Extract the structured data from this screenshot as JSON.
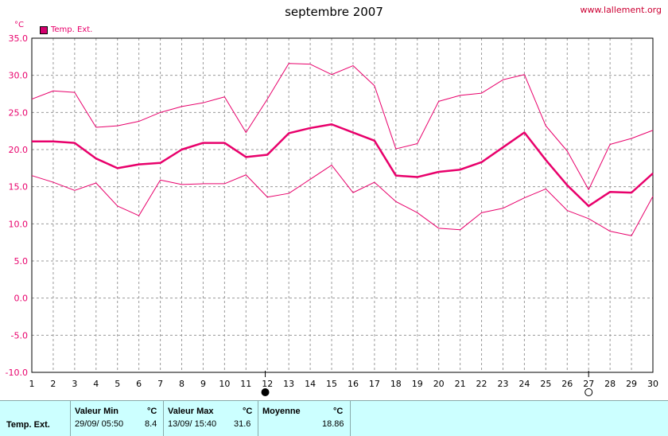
{
  "header": {
    "title": "septembre 2007",
    "site": "www.lallement.org",
    "unit": "°C",
    "legend": "Temp. Ext."
  },
  "colors": {
    "line": "#e8006b",
    "grid": "#9a9a9a"
  },
  "markers": {
    "filled_at": 11.9,
    "hollow_at": 27
  },
  "chart_data": {
    "type": "line",
    "title": "septembre 2007",
    "ylabel": "°C",
    "x": [
      1,
      2,
      3,
      4,
      5,
      6,
      7,
      8,
      9,
      10,
      11,
      12,
      13,
      14,
      15,
      16,
      17,
      18,
      19,
      20,
      21,
      22,
      23,
      24,
      25,
      26,
      27,
      28,
      29,
      30
    ],
    "xlim": [
      1,
      30
    ],
    "ylim": [
      -10,
      35
    ],
    "yticks": [
      35,
      30,
      25,
      20,
      15,
      10,
      5,
      0,
      -5,
      -10
    ],
    "ytick_labels": [
      "35.0",
      "30.0",
      "25.0",
      "20.0",
      "15.0",
      "10.0",
      "5.0",
      "0.0",
      "-5.0",
      "-10.0"
    ],
    "grid": true,
    "legend_position": "top-left",
    "series": [
      {
        "name": "Temp. Ext.",
        "role": "max",
        "values": [
          26.8,
          27.9,
          27.7,
          23.0,
          23.2,
          23.8,
          25.0,
          25.8,
          26.3,
          27.1,
          22.3,
          26.8,
          31.6,
          31.5,
          30.1,
          31.3,
          28.6,
          20.1,
          20.8,
          26.5,
          27.3,
          27.6,
          29.4,
          30.1,
          23.2,
          19.8,
          14.6,
          20.7,
          21.5,
          22.6
        ]
      },
      {
        "name": "Temp. Ext.",
        "role": "mean",
        "values": [
          21.1,
          21.1,
          20.9,
          18.8,
          17.5,
          18.0,
          18.2,
          20.0,
          20.9,
          20.9,
          19.0,
          19.3,
          22.2,
          22.9,
          23.4,
          22.3,
          21.2,
          16.5,
          16.3,
          17.0,
          17.3,
          18.3,
          20.3,
          22.3,
          18.6,
          15.2,
          12.4,
          14.3,
          14.2,
          16.8
        ]
      },
      {
        "name": "Temp. Ext.",
        "role": "min",
        "values": [
          16.5,
          15.6,
          14.5,
          15.5,
          12.4,
          11.1,
          15.9,
          15.3,
          15.4,
          15.4,
          16.6,
          13.6,
          14.1,
          16.0,
          17.9,
          14.2,
          15.6,
          13.0,
          11.5,
          9.4,
          9.2,
          11.5,
          12.1,
          13.5,
          14.7,
          11.8,
          10.7,
          9.0,
          8.4,
          13.7
        ]
      }
    ]
  },
  "stats": {
    "row_label": "Temp. Ext.",
    "min": {
      "header": "Valeur Min",
      "unit": "°C",
      "date": "29/09/  05:50",
      "value": "8.4"
    },
    "max": {
      "header": "Valeur Max",
      "unit": "°C",
      "date": "13/09/  15:40",
      "value": "31.6"
    },
    "mean": {
      "header": "Moyenne",
      "unit": "°C",
      "value": "18.86"
    }
  }
}
